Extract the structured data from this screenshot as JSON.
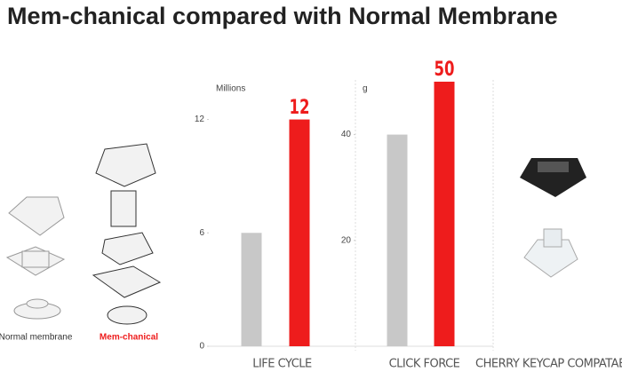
{
  "title": "Mem-chanical compared with Normal Membrane",
  "labels": {
    "normal": "Normal membrane",
    "memchanical": "Mem-chanical",
    "cherry": "CHERRY KEYCAP COMPATABLE"
  },
  "chart_data": [
    {
      "type": "bar",
      "unit": "Millions",
      "x_label": "LIFE CYCLE",
      "categories": [
        null,
        null
      ],
      "values": [
        6,
        12
      ],
      "colors": [
        "#c8c8c8",
        "#ee1c1c"
      ],
      "show_label": [
        false,
        true
      ],
      "ylim": [
        0,
        14
      ],
      "yticks": [
        0,
        6,
        12
      ]
    },
    {
      "type": "bar",
      "unit": "g",
      "x_label": "CLICK FORCE",
      "categories": [
        null,
        null
      ],
      "values": [
        40,
        50
      ],
      "colors": [
        "#c8c8c8",
        "#ee1c1c"
      ],
      "show_label": [
        false,
        true
      ],
      "ylim": [
        0,
        50
      ],
      "yticks": [
        20,
        40
      ]
    }
  ]
}
